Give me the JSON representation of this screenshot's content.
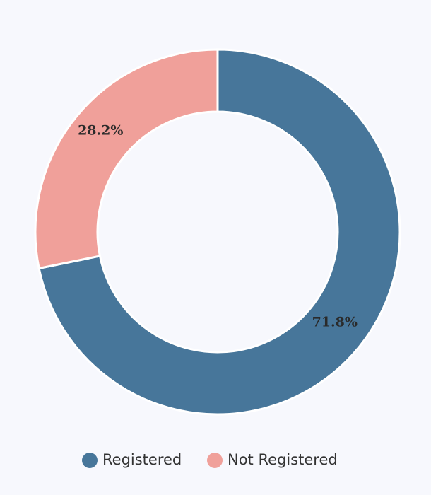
{
  "chart_data": {
    "type": "donut",
    "categories": [
      "Registered",
      "Not Registered"
    ],
    "values": [
      71.8,
      28.2
    ],
    "value_labels": [
      "71.8%",
      "28.2%"
    ],
    "colors": [
      "#47769a",
      "#f0a09a"
    ]
  }
}
